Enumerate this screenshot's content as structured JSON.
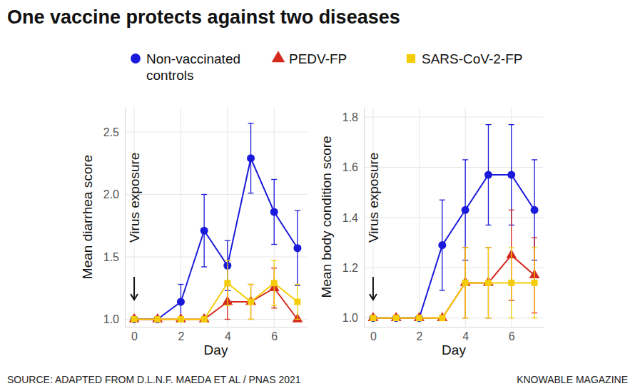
{
  "title": "One vaccine protects against two diseases",
  "source": "SOURCE: ADAPTED FROM D.L.N.F. MAEDA ET AL / PNAS 2021",
  "credit": "KNOWABLE MAGAZINE",
  "chart_data": [
    {
      "type": "line",
      "x_label": "Day",
      "y_label": "Mean diarrhea score",
      "x": [
        0,
        1,
        2,
        3,
        4,
        5,
        6,
        7
      ],
      "xlim": [
        -0.4,
        7.4
      ],
      "xticks": [
        0,
        2,
        4,
        6
      ],
      "ylim": [
        0.94,
        2.7
      ],
      "yticks": [
        {
          "value": 1,
          "label": "1.0"
        },
        {
          "value": 1.5,
          "label": "1.5"
        },
        {
          "value": 2,
          "label": "2.0"
        },
        {
          "value": 2.5,
          "label": "2.5"
        }
      ],
      "grid": true,
      "legend": "top",
      "annotations": [
        {
          "text": "Virus exposure",
          "x": 0
        }
      ],
      "series": [
        {
          "name": "Non-vaccinated controls",
          "color": "#1a1adb",
          "marker": "circle",
          "values": [
            1.0,
            1.0,
            1.14,
            1.71,
            1.43,
            2.29,
            1.86,
            1.57
          ],
          "errors": [
            0,
            0,
            0.14,
            0.29,
            0.2,
            0.28,
            0.26,
            0.3
          ]
        },
        {
          "name": "PEDV-FP",
          "color": "#d42a1e",
          "marker": "triangle",
          "values": [
            1.0,
            1.0,
            1.0,
            1.0,
            1.14,
            1.14,
            1.25,
            1.0
          ],
          "errors": [
            0,
            0,
            0,
            0,
            0.14,
            0.14,
            0.16,
            0
          ]
        },
        {
          "name": "SARS-CoV-2-FP",
          "color": "#f5cc0a",
          "marker": "square",
          "values": [
            1.0,
            1.0,
            1.0,
            1.0,
            1.29,
            1.14,
            1.29,
            1.14
          ],
          "errors": [
            0,
            0,
            0,
            0,
            0.18,
            0.14,
            0.18,
            0.14
          ]
        }
      ]
    },
    {
      "type": "line",
      "x_label": "Day",
      "y_label": "Mean body condition score",
      "x": [
        0,
        1,
        2,
        3,
        4,
        5,
        6,
        7
      ],
      "xlim": [
        -0.4,
        7.4
      ],
      "xticks": [
        0,
        2,
        4,
        6
      ],
      "ylim": [
        0.965,
        1.84
      ],
      "yticks": [
        {
          "value": 1,
          "label": "1.0"
        },
        {
          "value": 1.2,
          "label": "1.2"
        },
        {
          "value": 1.4,
          "label": "1.4"
        },
        {
          "value": 1.6,
          "label": "1.6"
        },
        {
          "value": 1.8,
          "label": "1.8"
        }
      ],
      "grid": true,
      "annotations": [
        {
          "text": "Virus exposure",
          "x": 0
        }
      ],
      "series": [
        {
          "color": "#1a1adb",
          "marker": "circle",
          "values": [
            1.0,
            1.0,
            1.0,
            1.29,
            1.43,
            1.57,
            1.57,
            1.43
          ],
          "errors": [
            0,
            0,
            0,
            0.18,
            0.2,
            0.2,
            0.2,
            0.2
          ]
        },
        {
          "color": "#d42a1e",
          "marker": "triangle",
          "values": [
            1.0,
            1.0,
            1.0,
            1.0,
            1.14,
            1.14,
            1.25,
            1.17
          ],
          "errors": [
            0,
            0,
            0,
            0,
            0.14,
            0.14,
            0.18,
            0.15
          ]
        },
        {
          "color": "#f5cc0a",
          "marker": "square",
          "values": [
            1.0,
            1.0,
            1.0,
            1.0,
            1.14,
            1.14,
            1.14,
            1.14
          ],
          "errors": [
            0,
            0,
            0,
            0,
            0.14,
            0.14,
            0.14,
            0.14
          ]
        }
      ]
    }
  ]
}
